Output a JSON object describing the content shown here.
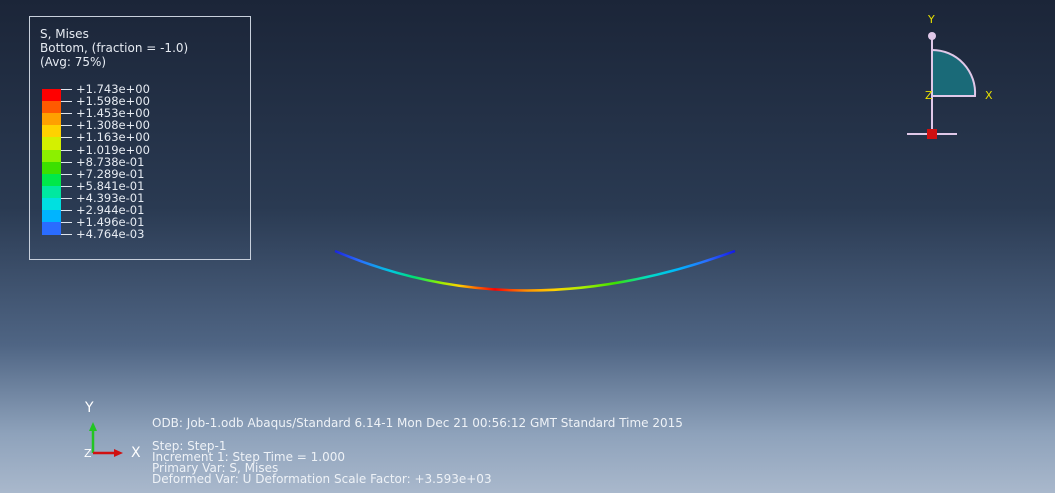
{
  "legend": {
    "title_lines": [
      "S, Mises",
      "Bottom, (fraction = -1.0)",
      "(Avg: 75%)"
    ],
    "values": [
      "+1.743e+00",
      "+1.598e+00",
      "+1.453e+00",
      "+1.308e+00",
      "+1.163e+00",
      "+1.019e+00",
      "+8.738e-01",
      "+7.289e-01",
      "+5.841e-01",
      "+4.393e-01",
      "+2.944e-01",
      "+1.496e-01",
      "+4.764e-03"
    ],
    "colors": [
      "#ff0000",
      "#ff5a00",
      "#ffa000",
      "#ffd200",
      "#d4f000",
      "#8cf000",
      "#3ce000",
      "#00e84a",
      "#00e8a0",
      "#00e0e0",
      "#00b4ff",
      "#2a6cff",
      "#1418e8"
    ]
  },
  "triad": {
    "y_label": "Y",
    "x_label": "X",
    "z_label": "Z"
  },
  "info": {
    "odb_line": "ODB: Job-1.odb    Abaqus/Standard 6.14-1    Mon Dec 21 00:56:12 GMT Standard Time 2015",
    "step_line": "Step: Step-1",
    "increment_line": "Increment     1: Step Time =     1.000",
    "primary_var_line": "Primary Var: S, Mises",
    "deformed_var_line": "Deformed Var: U   Deformation Scale Factor: +3.593e+03"
  }
}
